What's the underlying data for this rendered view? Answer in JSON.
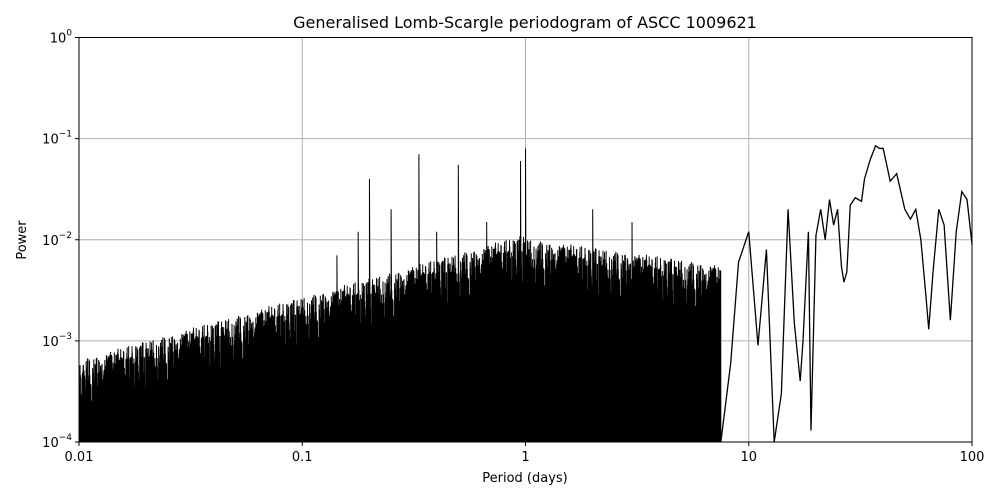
{
  "chart_data": {
    "type": "line",
    "title": "Generalised Lomb-Scargle periodogram of ASCC 1009621",
    "xlabel": "Period (days)",
    "ylabel": "Power",
    "xscale": "log",
    "yscale": "log",
    "xlim": [
      0.01,
      100
    ],
    "ylim": [
      0.0001,
      1
    ],
    "grid": true,
    "x_ticks": [
      {
        "value": 0.01,
        "label": "0.01"
      },
      {
        "value": 0.1,
        "label": "0.1"
      },
      {
        "value": 1,
        "label": "1"
      },
      {
        "value": 10,
        "label": "10"
      },
      {
        "value": 100,
        "label": "100"
      }
    ],
    "y_ticks": [
      {
        "value": 0.0001,
        "base": "10",
        "exp": "−4"
      },
      {
        "value": 0.001,
        "base": "10",
        "exp": "−3"
      },
      {
        "value": 0.01,
        "base": "10",
        "exp": "−2"
      },
      {
        "value": 0.1,
        "base": "10",
        "exp": "−1"
      },
      {
        "value": 1,
        "base": "10",
        "exp": "0"
      }
    ],
    "line_color": "#000000",
    "series": [
      {
        "x": [
          7.5,
          8.3,
          9.0,
          10.0,
          11.0,
          12.0,
          13.0,
          14.0,
          15.0,
          16.0,
          17.0,
          17.5,
          18.5,
          19.0,
          20.0,
          21.0,
          22.0,
          23.0,
          24.0,
          25.0,
          26.0,
          26.7,
          27.5,
          28.5,
          30.0,
          32.0,
          33.0,
          35.0,
          37.0,
          38.5,
          40.0,
          41.5,
          43.0,
          46.0,
          50.0,
          53.0,
          56.0,
          59.0,
          62.0,
          64.0,
          67.0,
          71.0,
          75.0,
          80.0,
          85.0,
          90.0,
          95.0,
          100.0
        ],
        "y": [
          0.0001,
          0.0006,
          0.006,
          0.012,
          0.0009,
          0.008,
          0.0001,
          0.0003,
          0.02,
          0.0015,
          0.0004,
          0.001,
          0.012,
          0.00013,
          0.011,
          0.02,
          0.01,
          0.025,
          0.014,
          0.02,
          0.0055,
          0.0038,
          0.0048,
          0.022,
          0.026,
          0.024,
          0.04,
          0.062,
          0.085,
          0.08,
          0.08,
          0.055,
          0.038,
          0.045,
          0.02,
          0.016,
          0.02,
          0.01,
          0.003,
          0.0013,
          0.005,
          0.02,
          0.014,
          0.0016,
          0.012,
          0.03,
          0.025,
          0.009
        ]
      }
    ],
    "peaks": [
      {
        "x": 0.2,
        "y": 0.04
      },
      {
        "x": 0.25,
        "y": 0.02
      },
      {
        "x": 0.333,
        "y": 0.07
      },
      {
        "x": 0.5,
        "y": 0.055
      },
      {
        "x": 0.95,
        "y": 0.06
      },
      {
        "x": 1.0,
        "y": 0.08
      },
      {
        "x": 0.178,
        "y": 0.012
      },
      {
        "x": 0.143,
        "y": 0.007
      },
      {
        "x": 0.4,
        "y": 0.012
      },
      {
        "x": 0.67,
        "y": 0.015
      },
      {
        "x": 2.0,
        "y": 0.02
      },
      {
        "x": 3.0,
        "y": 0.015
      }
    ]
  }
}
